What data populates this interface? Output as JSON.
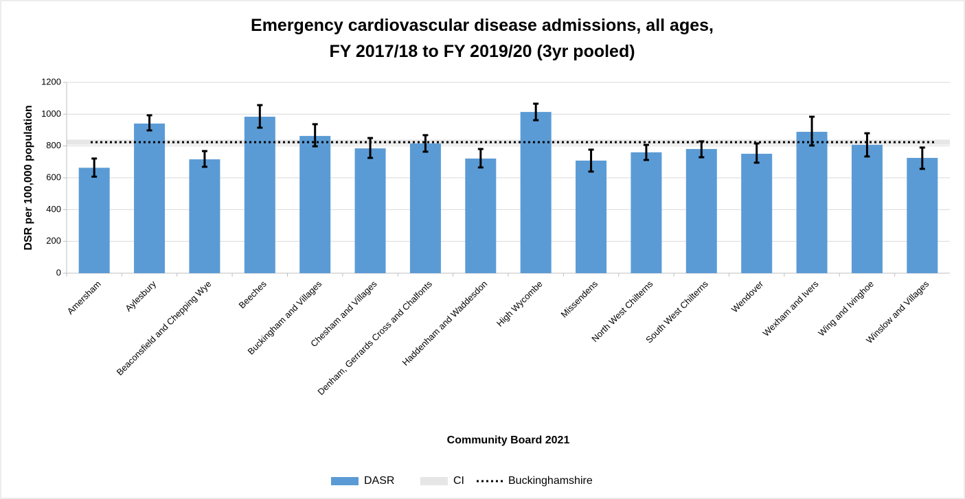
{
  "chart_data": {
    "type": "bar",
    "title_lines": [
      "Emergency cardiovascular disease admissions, all ages,",
      "FY 2017/18 to FY 2019/20 (3yr pooled)"
    ],
    "y_label": "DSR per 100,000 population",
    "x_label": "Community Board 2021",
    "categories": [
      "Amersham",
      "Aylesbury",
      "Beaconsfield and Chepping Wye",
      "Beeches",
      "Buckingham and Villages",
      "Chesham and Villages",
      "Denham, Gerrards Cross and Chalfonts",
      "Haddenham and Waddesdon",
      "High Wycombe",
      "Missendens",
      "North West Chilterns",
      "South West Chilterns",
      "Wendover",
      "Wexham and Ivers",
      "Wing and Ivinghoe",
      "Winslow and Villages"
    ],
    "series": [
      {
        "name": "DASR",
        "color": "#5b9bd5",
        "values": [
          663,
          941,
          716,
          984,
          863,
          785,
          816,
          721,
          1014,
          708,
          760,
          781,
          751,
          889,
          807,
          725
        ],
        "ci_lower": [
          607,
          898,
          669,
          915,
          798,
          725,
          764,
          665,
          962,
          639,
          712,
          729,
          695,
          803,
          734,
          656
        ],
        "ci_upper": [
          721,
          993,
          768,
          1057,
          937,
          850,
          868,
          781,
          1066,
          777,
          807,
          829,
          816,
          984,
          880,
          790
        ]
      }
    ],
    "bands": [
      {
        "name": "CI",
        "lower": 808,
        "upper": 840,
        "color": "#e7e6e6"
      }
    ],
    "reference_lines": [
      {
        "name": "Buckinghamshire",
        "value": 824,
        "color": "#000000"
      }
    ],
    "ylim": [
      0,
      1200
    ],
    "yticks": [
      0,
      200,
      400,
      600,
      800,
      1000,
      1200
    ],
    "grid": true
  }
}
